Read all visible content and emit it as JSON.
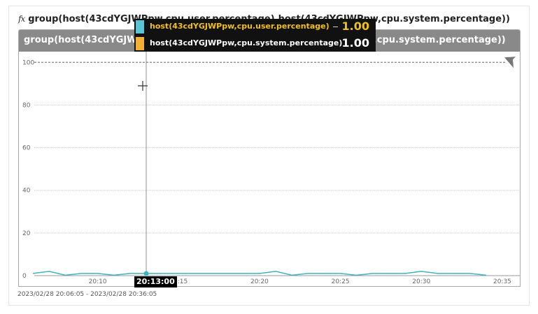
{
  "panel": {
    "fx_icon": "fx",
    "title": "group(host(43cdYGJWPpw,cpu.user.percentage),host(43cdYGJWPpw,cpu.system.percentage))",
    "time_range": "2023/02/28 20:06:05 - 2023/02/28 20:36:05"
  },
  "tooltip": {
    "rows": [
      {
        "label": "host(43cdYGJWPpw,cpu.user.percentage)",
        "value": "1.00",
        "swatch_color": "#5bc4d4"
      },
      {
        "label": "host(43cdYGJWPpw,cpu.system.percentage)",
        "value": "1.00",
        "swatch_color": "#f2b134"
      }
    ],
    "time": "20:13:00"
  },
  "colors": {
    "header_bg": "#898989",
    "series_user": "#3eb3c1",
    "series_system": "#f2b134",
    "threshold": "#666666",
    "grid": "#c9c9c9"
  },
  "chart_data": {
    "type": "line",
    "title": "group(host(43cdYGJWPpw,cpu.user.percentage),host(43cdYGJWPpw,cpu.system.percentage))",
    "xlabel": "",
    "ylabel": "",
    "ylim": [
      0,
      105
    ],
    "xlim": [
      "20:06:05",
      "20:36:05"
    ],
    "y_ticks": [
      0,
      20,
      40,
      60,
      80,
      100
    ],
    "x_ticks": [
      "20:10",
      "20:15",
      "20:20",
      "20:25",
      "20:30",
      "20:35"
    ],
    "grid": true,
    "threshold": 100,
    "x": [
      "20:06",
      "20:07",
      "20:08",
      "20:09",
      "20:10",
      "20:11",
      "20:12",
      "20:13",
      "20:14",
      "20:15",
      "20:16",
      "20:17",
      "20:18",
      "20:19",
      "20:20",
      "20:21",
      "20:22",
      "20:23",
      "20:24",
      "20:25",
      "20:26",
      "20:27",
      "20:28",
      "20:29",
      "20:30",
      "20:31",
      "20:32",
      "20:33",
      "20:34"
    ],
    "series": [
      {
        "name": "host(43cdYGJWPpw,cpu.user.percentage)",
        "values": [
          1,
          2,
          0.2,
          1,
          1,
          0.2,
          1,
          1,
          1,
          1,
          1,
          1,
          1,
          1,
          1,
          2,
          0.2,
          1,
          1,
          1,
          0.2,
          1,
          1,
          1,
          2,
          1,
          1,
          1,
          0.2
        ]
      },
      {
        "name": "host(43cdYGJWPpw,cpu.system.percentage)",
        "values": [
          1,
          1,
          1,
          1,
          1,
          1,
          1,
          1,
          1,
          1,
          1,
          1,
          1,
          1,
          1,
          1,
          1,
          1,
          1,
          1,
          1,
          1,
          1,
          1,
          1,
          1,
          1,
          1,
          1
        ]
      }
    ],
    "crosshair_x": "20:13:00"
  }
}
